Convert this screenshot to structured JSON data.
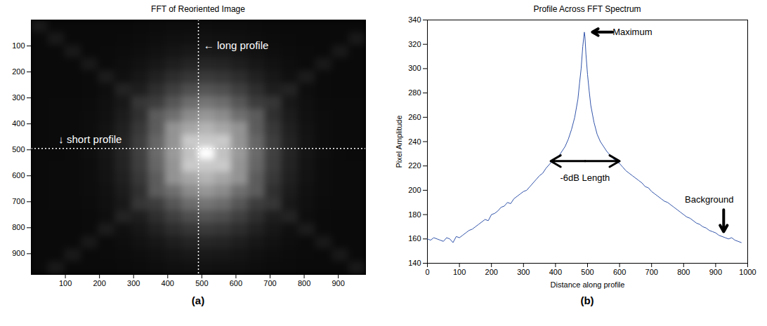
{
  "chart_data": [
    {
      "type": "heatmap",
      "title": "FFT of Reoriented Image",
      "label": "(a)",
      "xlim": [
        0,
        980
      ],
      "ylim": [
        980,
        0
      ],
      "xticks": [
        100,
        200,
        300,
        400,
        500,
        600,
        700,
        800,
        900
      ],
      "yticks": [
        100,
        200,
        300,
        400,
        500,
        600,
        700,
        800,
        900
      ],
      "long_profile_x": 490,
      "short_profile_y": 495,
      "annotations": [
        {
          "text": "← long profile",
          "x": 505,
          "y": 100
        },
        {
          "text": "↓ short profile",
          "x": 80,
          "y": 460
        }
      ],
      "cells": [
        [
          25,
          10,
          10,
          10,
          10,
          10,
          11,
          12,
          13,
          13,
          14,
          13,
          13,
          12,
          11,
          10,
          10,
          10,
          10,
          10
        ],
        [
          10,
          25,
          10,
          10,
          10,
          11,
          12,
          14,
          16,
          17,
          18,
          17,
          16,
          14,
          12,
          11,
          10,
          10,
          10,
          25
        ],
        [
          10,
          10,
          25,
          10,
          11,
          12,
          14,
          17,
          21,
          24,
          25,
          24,
          21,
          17,
          14,
          12,
          11,
          10,
          25,
          10
        ],
        [
          10,
          10,
          10,
          25,
          11,
          14,
          18,
          23,
          30,
          36,
          38,
          36,
          30,
          23,
          18,
          14,
          11,
          25,
          10,
          10
        ],
        [
          10,
          10,
          10,
          11,
          28,
          16,
          23,
          33,
          45,
          54,
          58,
          54,
          45,
          33,
          23,
          16,
          28,
          11,
          10,
          10
        ],
        [
          10,
          10,
          10,
          11,
          14,
          35,
          30,
          46,
          63,
          78,
          84,
          78,
          63,
          46,
          30,
          35,
          14,
          11,
          10,
          10
        ],
        [
          10,
          11,
          11,
          12,
          16,
          24,
          54,
          61,
          86,
          108,
          116,
          108,
          86,
          61,
          54,
          24,
          16,
          12,
          11,
          11
        ],
        [
          10,
          11,
          11,
          13,
          17,
          28,
          48,
          92,
          111,
          139,
          150,
          139,
          111,
          92,
          48,
          28,
          17,
          13,
          11,
          11
        ],
        [
          10,
          11,
          11,
          13,
          19,
          32,
          56,
          92,
          147,
          166,
          180,
          166,
          147,
          92,
          56,
          32,
          19,
          13,
          11,
          11
        ],
        [
          10,
          11,
          11,
          13,
          20,
          35,
          62,
          102,
          148,
          202,
          202,
          202,
          148,
          102,
          62,
          35,
          20,
          13,
          11,
          11
        ],
        [
          10,
          10,
          11,
          14,
          21,
          36,
          64,
          106,
          154,
          194,
          255,
          194,
          154,
          106,
          64,
          36,
          21,
          14,
          11,
          10
        ],
        [
          10,
          11,
          11,
          13,
          20,
          35,
          62,
          102,
          148,
          202,
          202,
          202,
          148,
          102,
          62,
          35,
          20,
          13,
          11,
          11
        ],
        [
          10,
          11,
          11,
          13,
          19,
          32,
          56,
          92,
          147,
          166,
          180,
          166,
          147,
          92,
          56,
          32,
          19,
          13,
          11,
          11
        ],
        [
          10,
          11,
          11,
          13,
          17,
          28,
          48,
          92,
          111,
          139,
          150,
          139,
          111,
          92,
          48,
          28,
          17,
          13,
          11,
          11
        ],
        [
          10,
          11,
          11,
          12,
          16,
          24,
          54,
          61,
          86,
          108,
          116,
          108,
          86,
          61,
          54,
          24,
          16,
          12,
          11,
          11
        ],
        [
          10,
          10,
          10,
          11,
          14,
          35,
          30,
          46,
          63,
          78,
          84,
          78,
          63,
          46,
          30,
          35,
          14,
          11,
          10,
          10
        ],
        [
          10,
          10,
          10,
          11,
          28,
          16,
          23,
          33,
          45,
          54,
          58,
          54,
          45,
          33,
          23,
          16,
          28,
          11,
          10,
          10
        ],
        [
          10,
          10,
          10,
          25,
          11,
          14,
          18,
          23,
          30,
          36,
          38,
          36,
          30,
          23,
          18,
          14,
          11,
          25,
          10,
          10
        ],
        [
          10,
          10,
          25,
          10,
          11,
          12,
          14,
          17,
          21,
          24,
          25,
          24,
          21,
          17,
          14,
          12,
          11,
          10,
          25,
          10
        ],
        [
          10,
          25,
          10,
          10,
          10,
          11,
          12,
          14,
          16,
          17,
          18,
          17,
          16,
          14,
          12,
          11,
          10,
          10,
          10,
          25
        ]
      ]
    },
    {
      "type": "line",
      "title": "Profile Across FFT Spectrum",
      "label": "(b)",
      "x_label": "Distance along profile",
      "y_label": "Pixel Amplitude",
      "xlim": [
        0,
        1000
      ],
      "ylim": [
        140,
        340
      ],
      "xticks": [
        0,
        100,
        200,
        300,
        400,
        500,
        600,
        700,
        800,
        900,
        1000
      ],
      "yticks": [
        140,
        160,
        180,
        200,
        220,
        240,
        260,
        280,
        300,
        320,
        340
      ],
      "color": "#3355aa",
      "x": [
        0,
        10,
        20,
        30,
        40,
        50,
        60,
        70,
        80,
        90,
        100,
        110,
        120,
        130,
        140,
        150,
        160,
        170,
        180,
        190,
        200,
        210,
        220,
        230,
        240,
        250,
        260,
        270,
        280,
        290,
        300,
        310,
        320,
        330,
        340,
        350,
        360,
        370,
        380,
        390,
        400,
        410,
        420,
        430,
        440,
        450,
        460,
        470,
        475,
        480,
        485,
        490,
        492,
        495,
        500,
        505,
        510,
        520,
        530,
        540,
        550,
        560,
        570,
        580,
        590,
        600,
        610,
        620,
        630,
        640,
        650,
        660,
        670,
        680,
        690,
        700,
        710,
        720,
        730,
        740,
        750,
        760,
        770,
        780,
        790,
        800,
        810,
        820,
        830,
        840,
        850,
        860,
        870,
        880,
        890,
        900,
        910,
        920,
        930,
        940,
        950,
        960,
        970,
        980
      ],
      "values": [
        160,
        159,
        161,
        160,
        159,
        158,
        161,
        160,
        157,
        162,
        161,
        163,
        165,
        167,
        168,
        170,
        172,
        174,
        176,
        175,
        180,
        181,
        183,
        186,
        187,
        190,
        189,
        193,
        195,
        197,
        199,
        200,
        203,
        206,
        209,
        212,
        214,
        218,
        221,
        224,
        226,
        228,
        232,
        236,
        242,
        250,
        260,
        275,
        288,
        300,
        318,
        330,
        326,
        312,
        295,
        282,
        270,
        256,
        246,
        240,
        236,
        232,
        229,
        226,
        224,
        222,
        219,
        216,
        214,
        212,
        210,
        208,
        206,
        203,
        202,
        199,
        197,
        195,
        193,
        191,
        190,
        188,
        186,
        184,
        182,
        180,
        178,
        177,
        175,
        173,
        172,
        170,
        169,
        167,
        166,
        165,
        163,
        162,
        161,
        160,
        161,
        159,
        158,
        157
      ],
      "annotations": [
        {
          "text": "Maximum",
          "x": 640,
          "y": 330,
          "arrow_from": [
            578,
            330
          ],
          "arrow_to": [
            515,
            330
          ],
          "marker": "arrow"
        },
        {
          "text": "-6dB Length",
          "x": 492,
          "y": 210,
          "arrow_from": [
            385,
            224
          ],
          "arrow_to": [
            600,
            224
          ],
          "marker": "double_arrow"
        },
        {
          "text": "Background",
          "x": 880,
          "y": 192,
          "arrow_from": [
            925,
            184
          ],
          "arrow_to": [
            925,
            166
          ],
          "marker": "arrow"
        }
      ]
    }
  ]
}
